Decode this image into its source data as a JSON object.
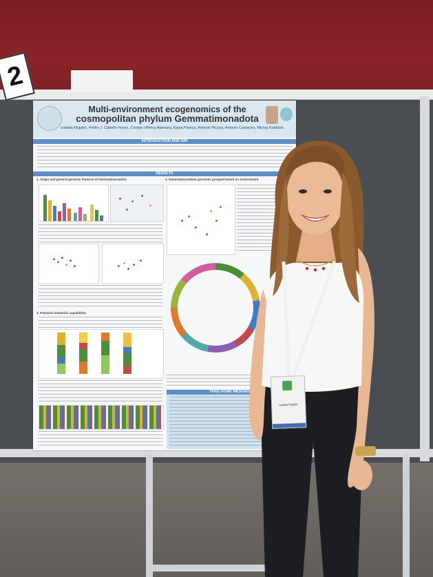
{
  "scene": {
    "board_number": "2"
  },
  "poster": {
    "title_line1": "Multi-environment ecogenomics of the",
    "title_line2": "cosmopolitan phylum Gemmatimonadota",
    "authors": "Izabela Mujakić, Pedro J. Cabello-Yeves, Cristian Villena-Alemany, Kasia Piwosz, Antonio Picazo, Antonio Camacho, Michal Koblížek",
    "intro_heading": "INTRODUCTION AND AIM",
    "results_heading": "RESULTS",
    "section1": "1. Origin and general genomic features of Gemmatimonadota",
    "section2": "2. Gemmatimonadota genomes grouped based on environment",
    "section3": "3. Potential metabolic capabilities",
    "take_home_heading": "TAKE-HOME MESSAGE",
    "colors": {
      "header_bg": "#dbe6ef",
      "band": "#5d8fc4",
      "take_home_bg": "#cfe2f2"
    }
  },
  "badge": {
    "name": "Izabela Mujakić"
  }
}
